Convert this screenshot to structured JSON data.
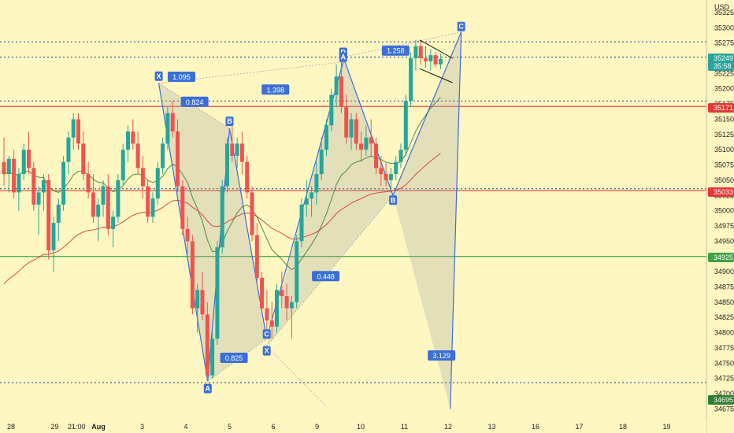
{
  "chart_data": {
    "type": "candlestick",
    "currency": "USD",
    "y_ticks": [
      34675,
      34700,
      34725,
      34750,
      34775,
      34800,
      34825,
      34850,
      34875,
      34900,
      34925,
      34950,
      34975,
      35000,
      35025,
      35050,
      35075,
      35100,
      35125,
      35150,
      35175,
      35200,
      35225,
      35250,
      35275,
      35300,
      35325
    ],
    "x_ticks": [
      {
        "label": "28",
        "x": 0
      },
      {
        "label": "29",
        "x": 1
      },
      {
        "label": "21:00",
        "x": 1.5
      },
      {
        "label": "Aug",
        "x": 2
      },
      {
        "label": "3",
        "x": 3
      },
      {
        "label": "4",
        "x": 4
      },
      {
        "label": "5",
        "x": 5
      },
      {
        "label": "6",
        "x": 6
      },
      {
        "label": "9",
        "x": 7
      },
      {
        "label": "10",
        "x": 8
      },
      {
        "label": "11",
        "x": 9
      },
      {
        "label": "12",
        "x": 10
      },
      {
        "label": "13",
        "x": 11
      },
      {
        "label": "16",
        "x": 12
      },
      {
        "label": "17",
        "x": 13
      },
      {
        "label": "18",
        "x": 14
      },
      {
        "label": "19",
        "x": 15
      }
    ],
    "price_badges": [
      {
        "value": "35249",
        "color": "#26a69a"
      },
      {
        "value": "35:58",
        "color": "#26a69a"
      },
      {
        "value": "35171",
        "color": "#e53935"
      },
      {
        "value": "35033",
        "color": "#e53935"
      },
      {
        "value": "34925",
        "color": "#43a047"
      },
      {
        "value": "34695",
        "color": "#2e7d32"
      }
    ],
    "horizontal_lines": [
      {
        "price": 35171,
        "color": "#e53935",
        "style": "solid"
      },
      {
        "price": 35033,
        "color": "#e53935",
        "style": "solid"
      },
      {
        "price": 34925,
        "color": "#43a047",
        "style": "solid"
      },
      {
        "price": 35277,
        "color": "#1e3a8a",
        "style": "dotted"
      },
      {
        "price": 35252,
        "color": "#1e3a8a",
        "style": "dotted"
      },
      {
        "price": 35180,
        "color": "#1e3a8a",
        "style": "dotted"
      },
      {
        "price": 35036,
        "color": "#1e3a8a",
        "style": "dotted"
      },
      {
        "price": 34718,
        "color": "#1e3a8a",
        "style": "dotted"
      }
    ],
    "pattern_points": [
      {
        "label": "X",
        "x": 3.38,
        "y": 35209
      },
      {
        "label": "A",
        "x": 4.5,
        "y": 34720
      },
      {
        "label": "B",
        "x": 5.0,
        "y": 35135
      },
      {
        "label": "C",
        "x": 5.85,
        "y": 34790
      },
      {
        "label": "X",
        "x": 5.85,
        "y": 34778
      },
      {
        "label": "D",
        "x": 7.6,
        "y": 35252
      },
      {
        "label": "A",
        "x": 7.6,
        "y": 35244
      },
      {
        "label": "B",
        "x": 8.74,
        "y": 35025
      },
      {
        "label": "C",
        "x": 10.3,
        "y": 35293
      }
    ],
    "ratios": [
      "1.095",
      "1.398",
      "0.824",
      "0.825",
      "0.448",
      "1.258",
      "3.129"
    ],
    "candles": [
      [
        35080,
        35120,
        35040,
        35060
      ],
      [
        35060,
        35090,
        35030,
        35085
      ],
      [
        35085,
        35100,
        35020,
        35030
      ],
      [
        35030,
        35070,
        35000,
        35060
      ],
      [
        35060,
        35110,
        35050,
        35100
      ],
      [
        35100,
        35130,
        35060,
        35070
      ],
      [
        35070,
        35080,
        35000,
        35010
      ],
      [
        35010,
        35040,
        34960,
        35030
      ],
      [
        35030,
        35060,
        35000,
        35050
      ],
      [
        35050,
        35060,
        34920,
        34935
      ],
      [
        34935,
        34990,
        34900,
        34980
      ],
      [
        34980,
        35020,
        34950,
        35010
      ],
      [
        35010,
        35090,
        35000,
        35080
      ],
      [
        35080,
        35130,
        35060,
        35120
      ],
      [
        35120,
        35160,
        35100,
        35150
      ],
      [
        35150,
        35160,
        35100,
        35110
      ],
      [
        35110,
        35130,
        35050,
        35060
      ],
      [
        35060,
        35080,
        35020,
        35030
      ],
      [
        35030,
        35060,
        34980,
        34990
      ],
      [
        34990,
        35020,
        34950,
        35010
      ],
      [
        35010,
        35050,
        34990,
        35040
      ],
      [
        35040,
        35060,
        34960,
        34970
      ],
      [
        34970,
        35000,
        34940,
        34990
      ],
      [
        34990,
        35060,
        34980,
        35050
      ],
      [
        35050,
        35110,
        35040,
        35100
      ],
      [
        35100,
        35140,
        35080,
        35130
      ],
      [
        35130,
        35150,
        35100,
        35110
      ],
      [
        35110,
        35130,
        35060,
        35070
      ],
      [
        35070,
        35090,
        35020,
        35040
      ],
      [
        35040,
        35050,
        34980,
        34990
      ],
      [
        34990,
        35030,
        34980,
        35020
      ],
      [
        35020,
        35080,
        35010,
        35070
      ],
      [
        35070,
        35120,
        35060,
        35110
      ],
      [
        35110,
        35170,
        35100,
        35160
      ],
      [
        35160,
        35180,
        35120,
        35130
      ],
      [
        35130,
        35150,
        35030,
        35040
      ],
      [
        35040,
        35050,
        34960,
        34970
      ],
      [
        34970,
        34990,
        34930,
        34950
      ],
      [
        34950,
        34960,
        34830,
        34840
      ],
      [
        34840,
        34880,
        34800,
        34870
      ],
      [
        34870,
        34900,
        34820,
        34830
      ],
      [
        34830,
        34850,
        34720,
        34730
      ],
      [
        34730,
        34800,
        34725,
        34790
      ],
      [
        34790,
        34950,
        34780,
        34940
      ],
      [
        34940,
        35050,
        34930,
        35040
      ],
      [
        35040,
        35120,
        35030,
        35110
      ],
      [
        35110,
        35140,
        35080,
        35090
      ],
      [
        35090,
        35120,
        35070,
        35110
      ],
      [
        35110,
        35130,
        35060,
        35080
      ],
      [
        35080,
        35090,
        35020,
        35030
      ],
      [
        35030,
        35040,
        34950,
        34960
      ],
      [
        34960,
        34980,
        34880,
        34890
      ],
      [
        34890,
        34900,
        34830,
        34840
      ],
      [
        34840,
        34870,
        34800,
        34820
      ],
      [
        34820,
        34850,
        34790,
        34810
      ],
      [
        34810,
        34880,
        34800,
        34870
      ],
      [
        34870,
        34900,
        34840,
        34860
      ],
      [
        34860,
        34880,
        34820,
        34840
      ],
      [
        34840,
        34860,
        34790,
        34850
      ],
      [
        34850,
        34960,
        34840,
        34950
      ],
      [
        34950,
        35020,
        34940,
        35010
      ],
      [
        35010,
        35050,
        34990,
        35020
      ],
      [
        35020,
        35040,
        34990,
        35030
      ],
      [
        35030,
        35080,
        35010,
        35060
      ],
      [
        35060,
        35120,
        35050,
        35100
      ],
      [
        35100,
        35150,
        35090,
        35140
      ],
      [
        35140,
        35200,
        35130,
        35190
      ],
      [
        35190,
        35240,
        35170,
        35220
      ],
      [
        35220,
        35250,
        35160,
        35170
      ],
      [
        35170,
        35190,
        35110,
        35120
      ],
      [
        35120,
        35160,
        35100,
        35150
      ],
      [
        35150,
        35160,
        35100,
        35110
      ],
      [
        35110,
        35130,
        35080,
        35100
      ],
      [
        35100,
        35140,
        35090,
        35120
      ],
      [
        35120,
        35150,
        35090,
        35110
      ],
      [
        35110,
        35120,
        35060,
        35070
      ],
      [
        35070,
        35090,
        35040,
        35060
      ],
      [
        35060,
        35080,
        35040,
        35050
      ],
      [
        35050,
        35070,
        35030,
        35060
      ],
      [
        35060,
        35090,
        35050,
        35080
      ],
      [
        35080,
        35110,
        35070,
        35100
      ],
      [
        35100,
        35190,
        35090,
        35180
      ],
      [
        35180,
        35260,
        35170,
        35250
      ],
      [
        35250,
        35280,
        35230,
        35270
      ],
      [
        35270,
        35280,
        35240,
        35250
      ],
      [
        35250,
        35270,
        35235,
        35245
      ],
      [
        35245,
        35265,
        35230,
        35255
      ],
      [
        35255,
        35260,
        35235,
        35240
      ],
      [
        35240,
        35258,
        35232,
        35249
      ]
    ]
  }
}
